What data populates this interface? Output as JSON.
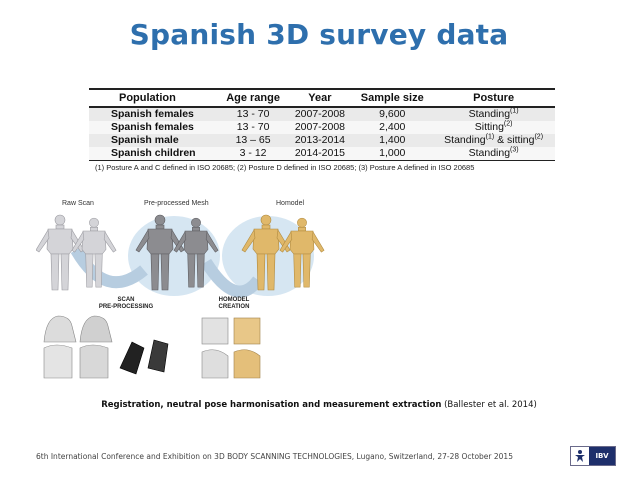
{
  "title": "Spanish 3D survey data",
  "table": {
    "headers": [
      "Population",
      "Age range",
      "Year",
      "Sample size",
      "Posture"
    ],
    "rows": [
      {
        "population": "Spanish females",
        "age": "13 - 70",
        "year": "2007-2008",
        "sample": "9,600",
        "posture": "Standing",
        "sup1": "(1)",
        "posture2": "",
        "sup2": ""
      },
      {
        "population": "Spanish females",
        "age": "13 - 70",
        "year": "2007-2008",
        "sample": "2,400",
        "posture": "Sitting",
        "sup1": "(2)",
        "posture2": "",
        "sup2": ""
      },
      {
        "population": "Spanish male",
        "age": "13 – 65",
        "year": "2013-2014",
        "sample": "1,400",
        "posture": "Standing",
        "sup1": "(1)",
        "posture2": " & sitting",
        "sup2": "(2)"
      },
      {
        "population": "Spanish children",
        "age": "3 - 12",
        "year": "2014-2015",
        "sample": "1,000",
        "posture": "Standing",
        "sup1": "(3)",
        "posture2": "",
        "sup2": ""
      }
    ],
    "note": "(1) Posture A and C defined in ISO 20685; (2) Posture D defined in ISO 20685; (3) Posture A defined in ISO 20685"
  },
  "figure": {
    "labels": {
      "raw_scan": "Raw Scan",
      "preprocessed": "Pre-processed Mesh",
      "homodel": "Homodel",
      "scan_step_line1": "SCAN",
      "scan_step_line2": "PRE-PROCESSING",
      "homodel_step_line1": "HOMODEL",
      "homodel_step_line2": "CREATION"
    },
    "colors": {
      "raw": "#d4d4d8",
      "processed": "#8c8c90",
      "homodel": "#e0b86a",
      "arrow_bg": "#d6e6f2"
    }
  },
  "caption": {
    "bold": "Registration, neutral pose harmonisation  and measurement extraction",
    "normal": " (Ballester et al. 2014)"
  },
  "footer": "6th International Conference and Exhibition on 3D BODY SCANNING TECHNOLOGIES, Lugano, Switzerland, 27-28 October 2015",
  "logo": {
    "text": "IBV",
    "color": "#1e2f6b"
  }
}
